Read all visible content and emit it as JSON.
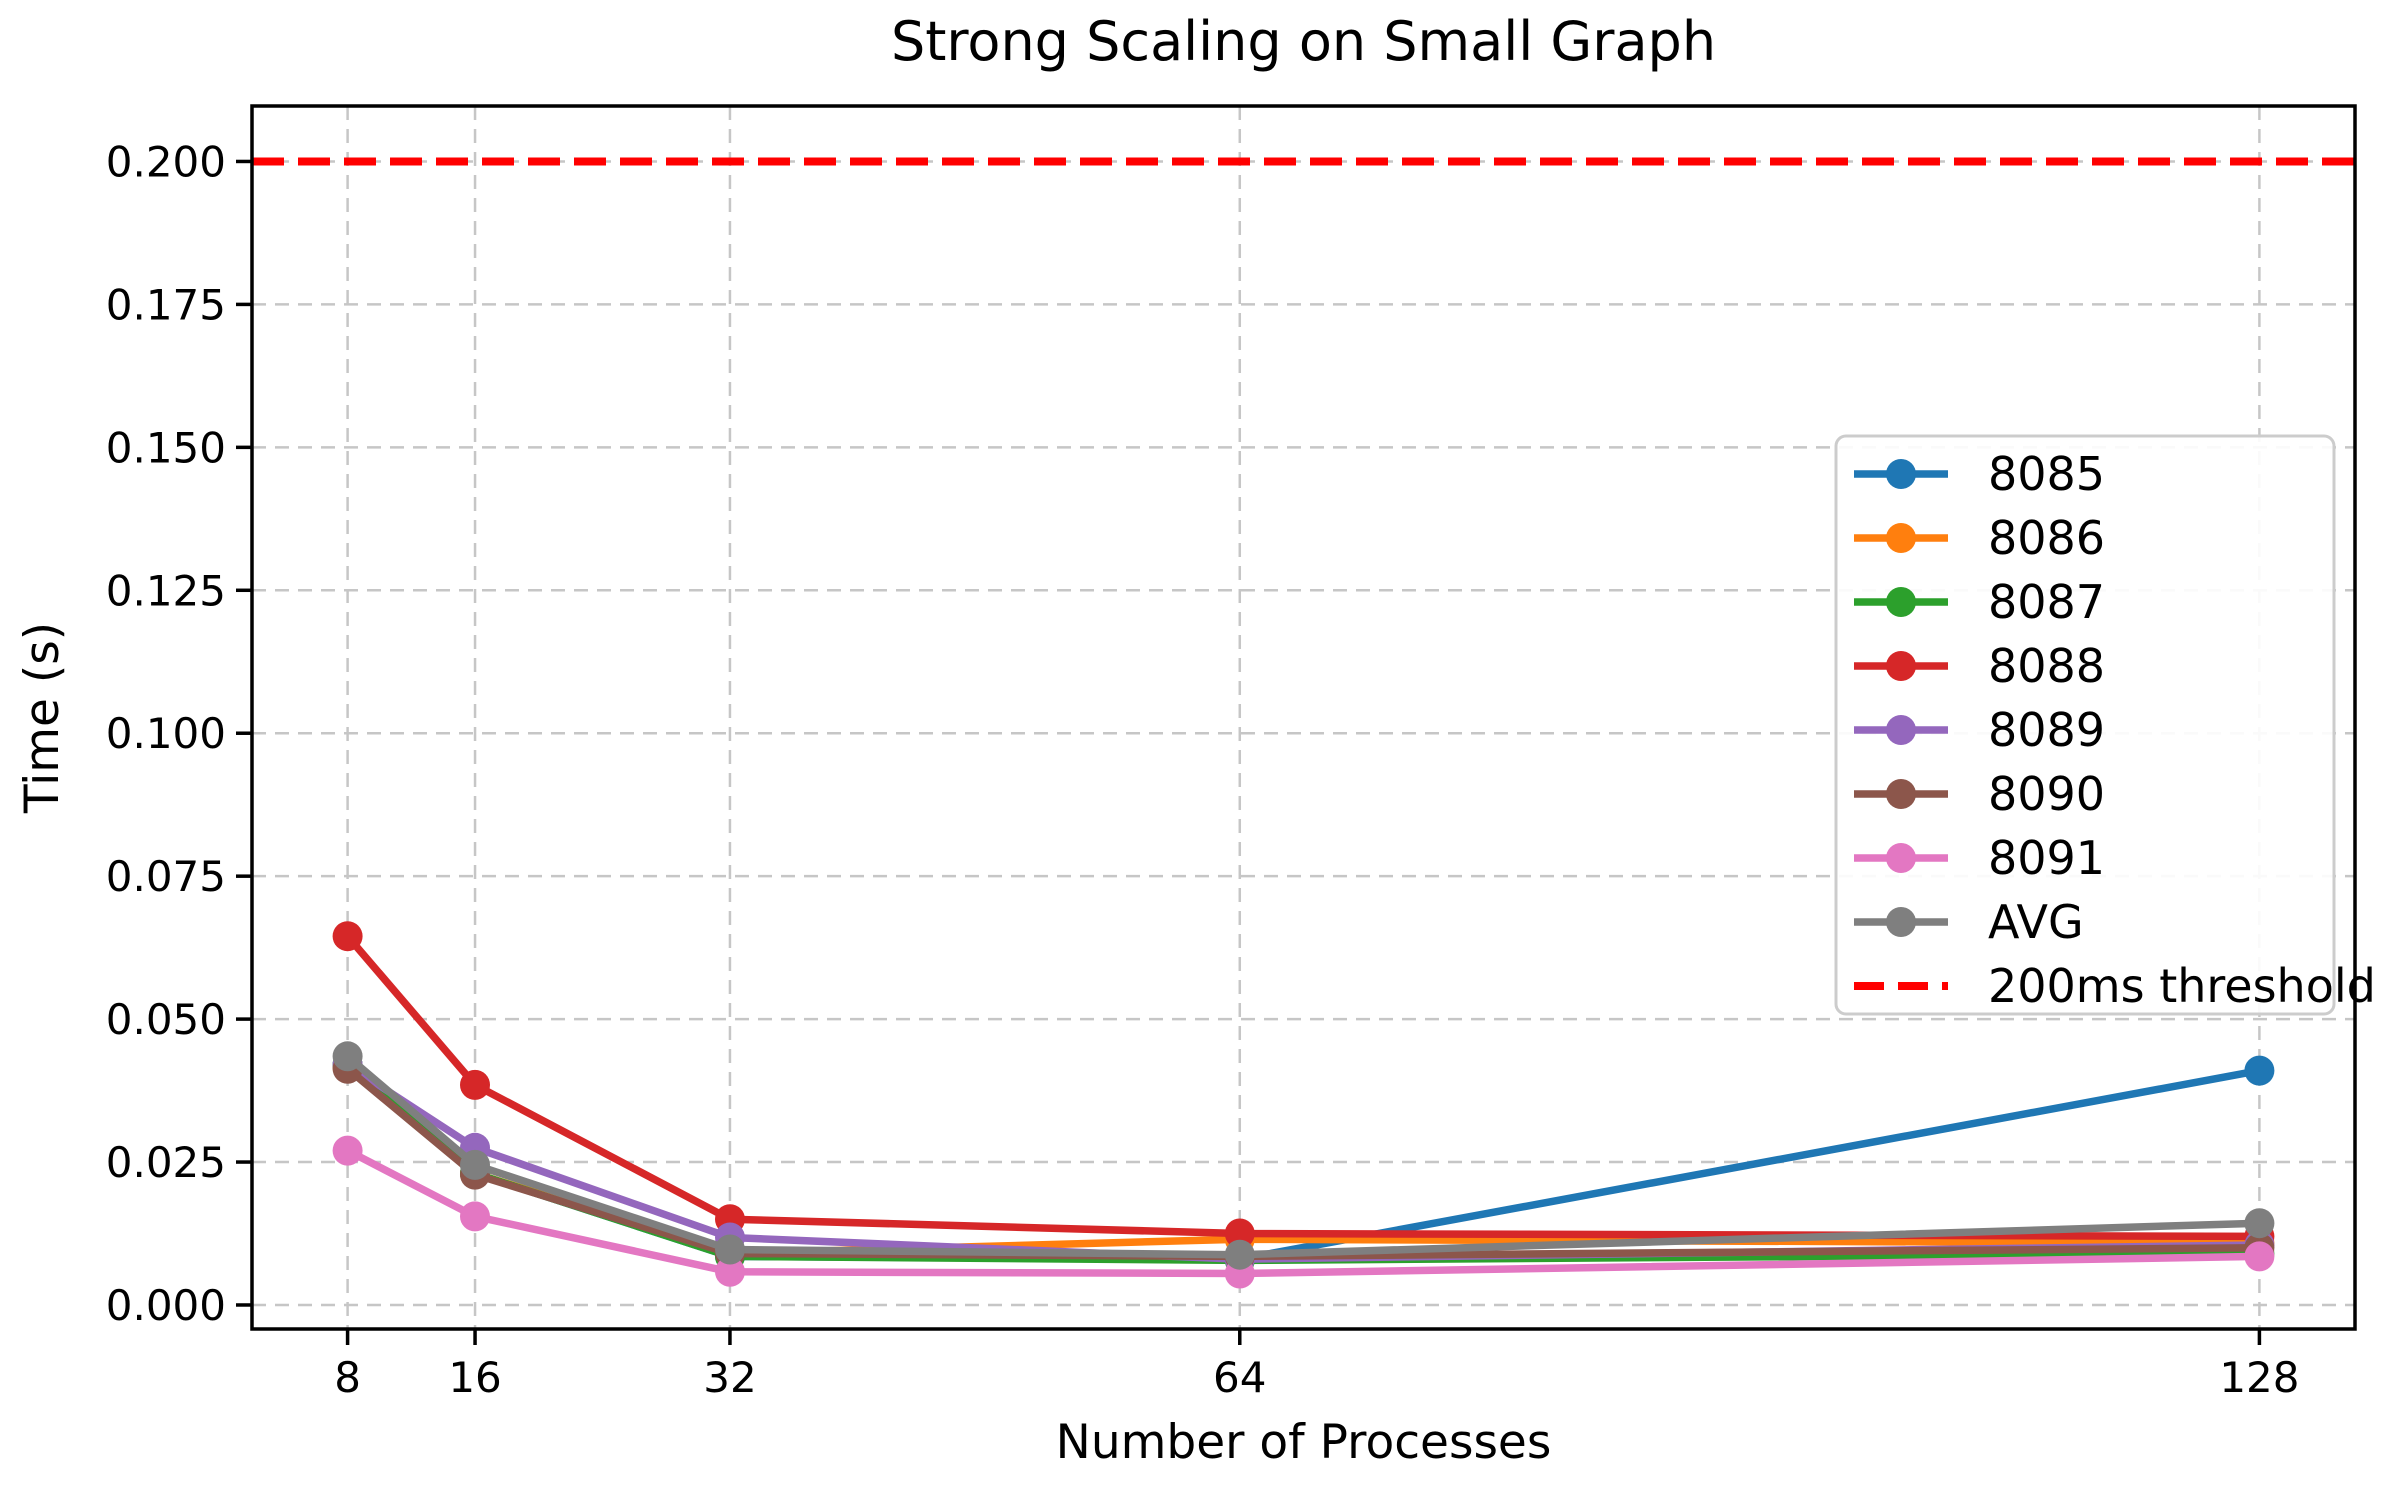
{
  "chart_data": {
    "type": "line",
    "title": "Strong Scaling on Small Graph",
    "xlabel": "Number of Processes",
    "ylabel": "Time (s)",
    "x": [
      8,
      16,
      32,
      64,
      128
    ],
    "xtick_labels": [
      "8",
      "16",
      "32",
      "64",
      "128"
    ],
    "yticks": [
      0.0,
      0.025,
      0.05,
      0.075,
      0.1,
      0.125,
      0.15,
      0.175,
      0.2
    ],
    "ytick_labels": [
      "0.000",
      "0.025",
      "0.050",
      "0.075",
      "0.100",
      "0.125",
      "0.150",
      "0.175",
      "0.200"
    ],
    "xlim": [
      2,
      134
    ],
    "ylim": [
      -0.0042,
      0.2097
    ],
    "grid": true,
    "grid_style": "dashed",
    "legend_position": "center right",
    "series": [
      {
        "name": "8085",
        "color": "#1f77b4",
        "values": [
          0.042,
          0.023,
          0.0085,
          0.008,
          0.041
        ]
      },
      {
        "name": "8086",
        "color": "#ff7f0e",
        "values": [
          0.0415,
          0.023,
          0.009,
          0.0115,
          0.0108
        ]
      },
      {
        "name": "8087",
        "color": "#2ca02c",
        "values": [
          0.042,
          0.023,
          0.0085,
          0.0078,
          0.009
        ]
      },
      {
        "name": "8088",
        "color": "#d62728",
        "values": [
          0.0645,
          0.0385,
          0.015,
          0.0125,
          0.012
        ]
      },
      {
        "name": "8089",
        "color": "#9467bd",
        "values": [
          0.042,
          0.0275,
          0.0118,
          0.008,
          0.0105
        ]
      },
      {
        "name": "8090",
        "color": "#8c564b",
        "values": [
          0.0413,
          0.0228,
          0.009,
          0.0085,
          0.01
        ]
      },
      {
        "name": "8091",
        "color": "#e377c2",
        "values": [
          0.027,
          0.0155,
          0.0058,
          0.0055,
          0.0085
        ]
      },
      {
        "name": "AVG",
        "color": "#7f7f7f",
        "values": [
          0.0435,
          0.0245,
          0.0097,
          0.0088,
          0.0143
        ]
      }
    ],
    "threshold": {
      "label": "200ms threshold",
      "value": 0.2,
      "color": "#ff0000",
      "style": "dashed"
    },
    "colors": {
      "grid": "#c6c6c6",
      "spine": "#000000",
      "legend_border": "#cccccc",
      "background": "#ffffff"
    }
  }
}
